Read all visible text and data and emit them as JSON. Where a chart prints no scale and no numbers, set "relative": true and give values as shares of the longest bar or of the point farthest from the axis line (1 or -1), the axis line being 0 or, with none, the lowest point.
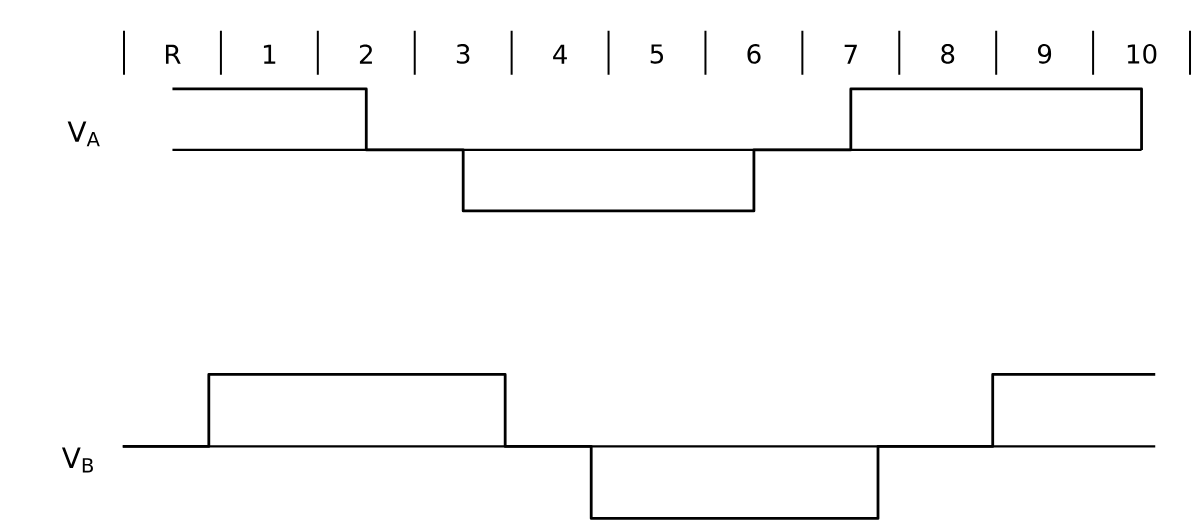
{
  "chart_data": [
    {
      "type": "step",
      "relative": true,
      "ylabel": "V$_{A}$",
      "categories": [
        "R",
        "1",
        "2",
        "3",
        "4",
        "5",
        "6",
        "7",
        "8",
        "9",
        "10"
      ],
      "marker": "none",
      "line_style": "solid",
      "series": [
        {
          "color": "#000000",
          "values": [
            1,
            1,
            0,
            -1,
            -1,
            -1,
            0,
            1,
            1,
            1,
            0
          ]
        }
      ]
    },
    {
      "type": "step",
      "relative": true,
      "ylabel": "V$_{B}$",
      "categories": [
        null,
        null,
        null,
        null,
        null,
        null,
        null,
        null,
        null,
        null,
        null,
        null,
        null,
        null,
        null,
        null,
        null,
        null,
        null,
        null,
        null,
        null,
        null,
        null,
        null,
        null,
        null,
        null,
        null,
        null,
        null,
        null,
        null,
        null,
        null,
        null,
        null,
        null,
        null,
        null,
        null,
        null,
        null,
        null,
        null,
        null,
        null,
        null,
        null,
        null,
        null,
        null,
        null,
        null,
        null,
        null,
        null,
        null,
        null,
        null,
        null,
        null,
        null,
        null,
        null,
        null,
        null,
        null,
        null,
        null,
        null,
        null,
        null,
        null,
        null,
        null,
        null,
        null,
        null,
        null,
        null,
        null,
        null,
        null,
        null,
        null,
        null,
        null,
        null,
        null,
        null,
        null,
        null,
        null,
        null,
        null,
        null,
        null,
        null,
        null,
        null,
        null,
        null,
        null,
        null,
        null,
        null,
        null,
        null
      ],
      "tick_labels": false,
      "marker": "none",
      "line_style": "solid",
      "series": [
        {
          "color": "#000000",
          "values": [
            0,
            0,
            0,
            0,
            0,
            0,
            0,
            0,
            0,
            1,
            1,
            1,
            1,
            1,
            1,
            1,
            1,
            1,
            1,
            1,
            1,
            1,
            1,
            1,
            1,
            1,
            1,
            1,
            1,
            1,
            1,
            1,
            1,
            1,
            1,
            1,
            1,
            1,
            1,
            1,
            0,
            0,
            0,
            0,
            0,
            0,
            0,
            0,
            0,
            -1,
            -1,
            -1,
            -1,
            -1,
            -1,
            -1,
            -1,
            -1,
            -1,
            -1,
            -1,
            -1,
            -1,
            -1,
            -1,
            -1,
            -1,
            -1,
            -1,
            -1,
            -1,
            -1,
            -1,
            -1,
            -1,
            -1,
            -1,
            -1,
            -1,
            0,
            0,
            0,
            0,
            0,
            0,
            0,
            0,
            0,
            0,
            0,
            0,
            1,
            1,
            1,
            1,
            1,
            1,
            1,
            1,
            1,
            1,
            1,
            1,
            1,
            1,
            1,
            1,
            1,
            1
          ]
        }
      ]
    }
  ]
}
